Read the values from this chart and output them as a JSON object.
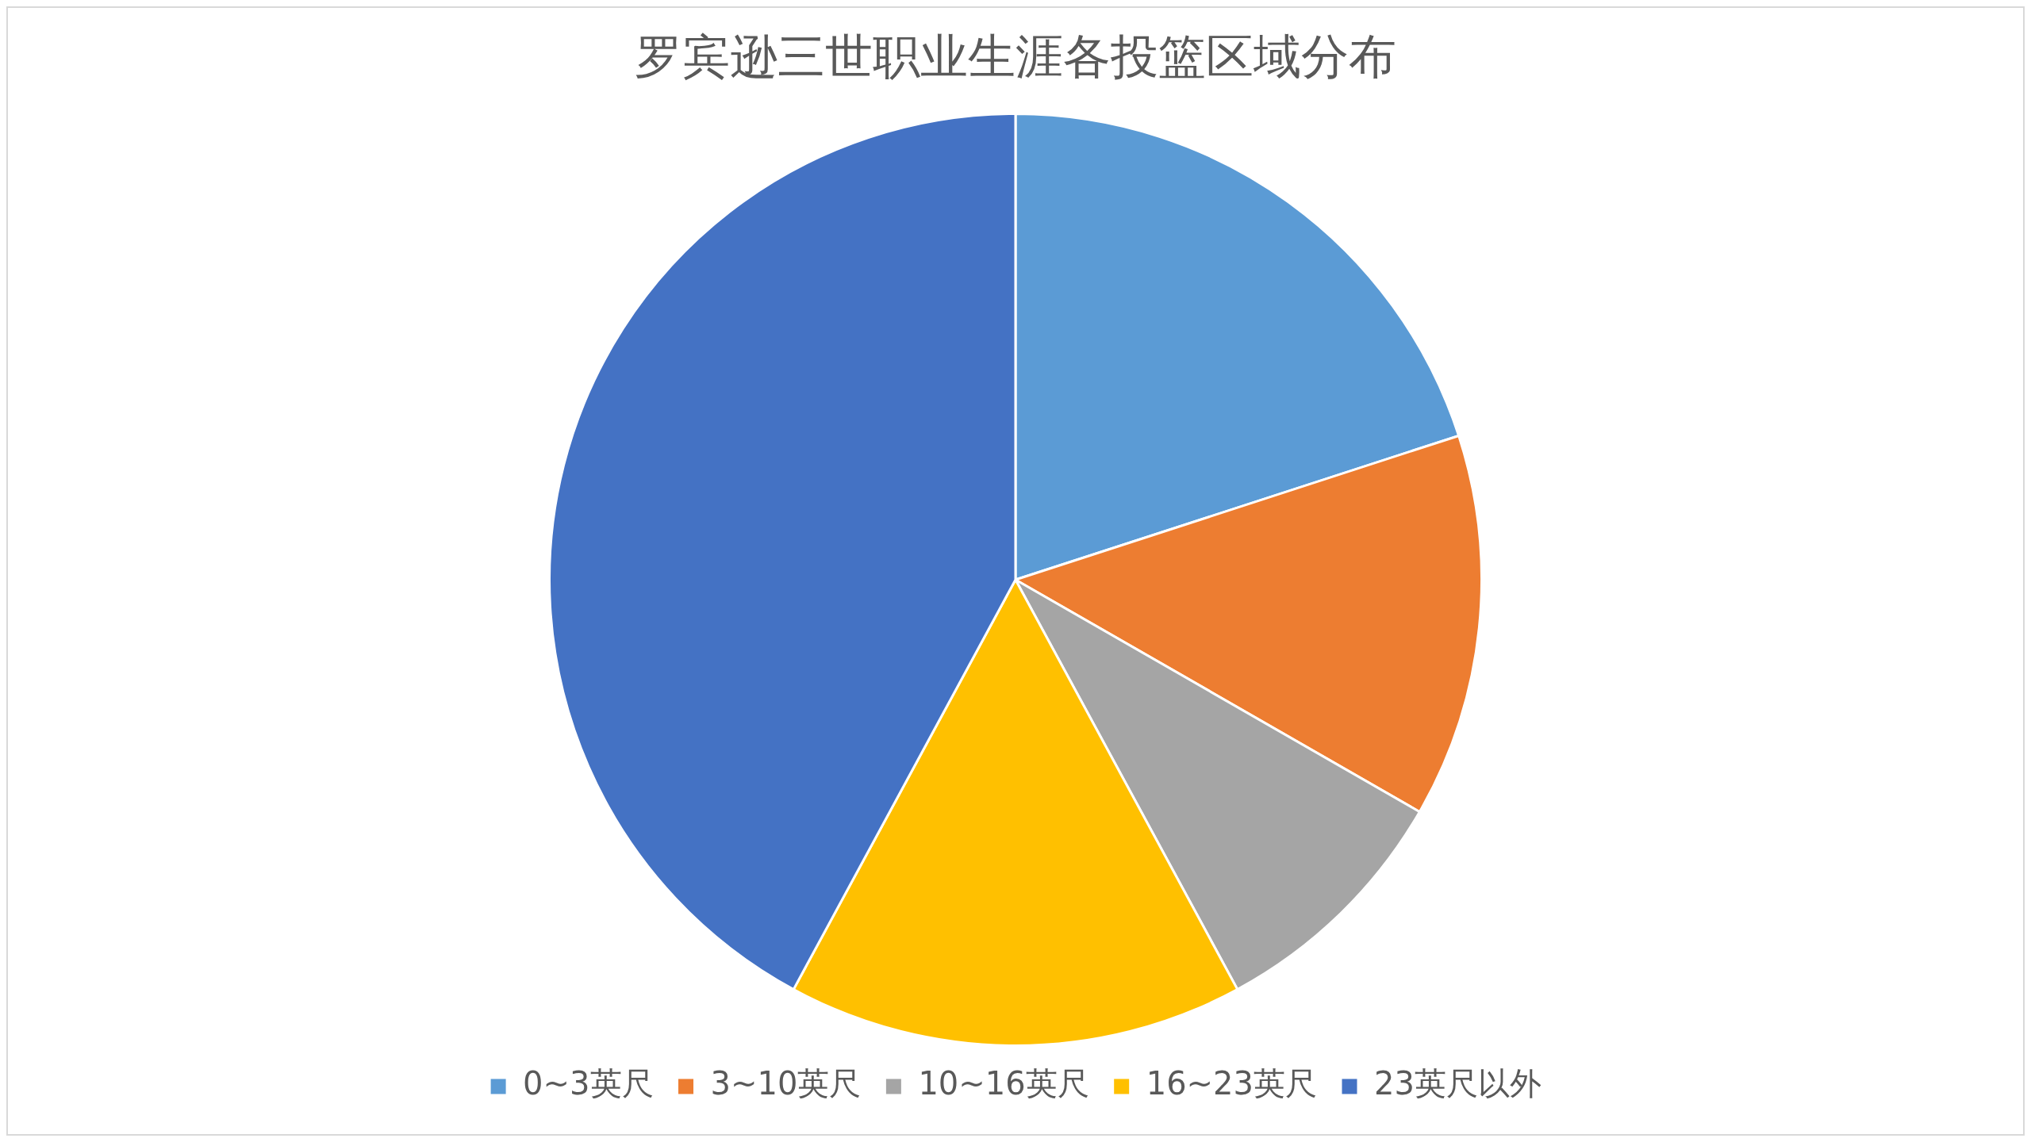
{
  "chart_data": {
    "type": "pie",
    "title": "罗宾逊三世职业生涯各投篮区域分布",
    "categories": [
      "0~3英尺",
      "3~10英尺",
      "10~16英尺",
      "16~23英尺",
      "23英尺以外"
    ],
    "values": [
      20.0,
      13.3,
      8.8,
      15.8,
      42.1
    ],
    "colors": [
      "#5b9bd5",
      "#ed7d31",
      "#a5a5a5",
      "#ffc000",
      "#4472c4"
    ],
    "legend": "bottom"
  }
}
